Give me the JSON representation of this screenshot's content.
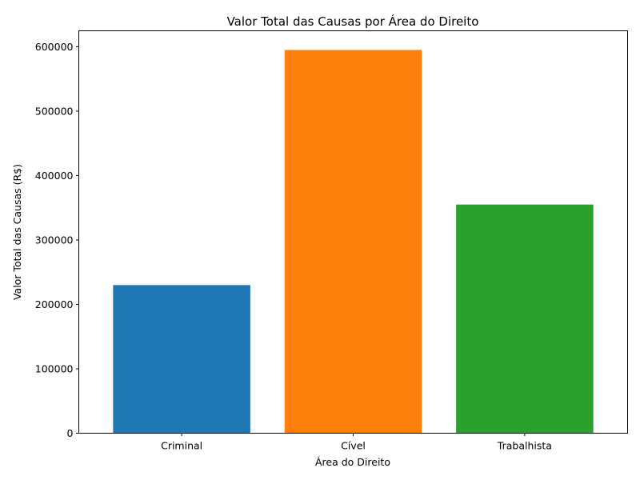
{
  "chart_data": {
    "type": "bar",
    "title": "Valor Total das Causas por Área do Direito",
    "xlabel": "Área do Direito",
    "ylabel": "Valor Total das Causas (R$)",
    "categories": [
      "Criminal",
      "Cível",
      "Trabalhista"
    ],
    "values": [
      230000,
      595000,
      355000
    ],
    "colors": [
      "#1f77b4",
      "#ff7f0e",
      "#2ca02c"
    ],
    "ylim": [
      0,
      624750
    ],
    "yticks": [
      0,
      100000,
      200000,
      300000,
      400000,
      500000,
      600000
    ],
    "ytick_labels": [
      "0",
      "100000",
      "200000",
      "300000",
      "400000",
      "500000",
      "600000"
    ],
    "grid": false,
    "legend": false
  }
}
